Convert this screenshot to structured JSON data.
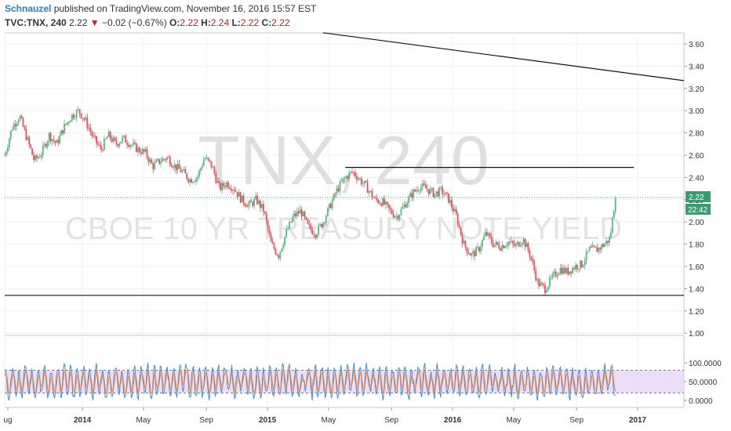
{
  "header": {
    "author": "Schnauzel",
    "published_text": " published on TradingView.com, November 16, 2016 15:57 EST",
    "symbol": "TVC:TNX, 240",
    "last": "2.22",
    "down_arrow": "▼",
    "change": "−0.02 (−0.67%)",
    "o_label": "O:",
    "o_value": "2.22",
    "h_label": "H:",
    "h_value": "2.24",
    "l_label": "L:",
    "l_value": "2.22",
    "c_label": "C:",
    "c_value": "2.22"
  },
  "watermark": {
    "symbol": "TNX, 240",
    "description": "CBOE 10 YR TREASURY NOTE YIELD"
  },
  "colors": {
    "up": "#53b987",
    "down": "#eb4d5c",
    "price_line": "#26a69a",
    "stoch_k": "#3f8fd2",
    "stoch_d": "#f5822a",
    "stoch_band": "#e6cff7",
    "drawing": "#111111"
  },
  "price_badge": {
    "value": "2.22",
    "time": "22:42"
  },
  "chart_data": [
    {
      "type": "candlestick",
      "title": "TVC:TNX, 240",
      "y_ticks": [
        "3.60",
        "3.40",
        "3.20",
        "3.00",
        "2.80",
        "2.60",
        "2.40",
        "2.20",
        "2.00",
        "1.80",
        "1.60",
        "1.40",
        "1.20",
        "1.00"
      ],
      "ylim": [
        1.0,
        3.68
      ],
      "x_ticks": [
        "ug",
        "2014",
        "May",
        "Sep",
        "2015",
        "May",
        "Sep",
        "2016",
        "May",
        "Sep",
        "2017"
      ],
      "bold_x_ticks": [
        "2014",
        "2015",
        "2016",
        "2017"
      ],
      "x_tick_months": [
        2013.58,
        2014.0,
        2014.33,
        2014.67,
        2015.0,
        2015.33,
        2015.67,
        2016.0,
        2016.33,
        2016.67,
        2017.0
      ],
      "xlim": [
        2013.58,
        2017.25
      ],
      "last_price": 2.22,
      "price_path": [
        [
          2013.58,
          2.6
        ],
        [
          2013.62,
          2.85
        ],
        [
          2013.66,
          2.95
        ],
        [
          2013.7,
          2.75
        ],
        [
          2013.74,
          2.55
        ],
        [
          2013.78,
          2.62
        ],
        [
          2013.82,
          2.78
        ],
        [
          2013.86,
          2.7
        ],
        [
          2013.9,
          2.85
        ],
        [
          2013.94,
          2.95
        ],
        [
          2013.98,
          3.0
        ],
        [
          2014.02,
          2.9
        ],
        [
          2014.06,
          2.75
        ],
        [
          2014.1,
          2.65
        ],
        [
          2014.14,
          2.78
        ],
        [
          2014.18,
          2.7
        ],
        [
          2014.22,
          2.75
        ],
        [
          2014.26,
          2.7
        ],
        [
          2014.3,
          2.65
        ],
        [
          2014.34,
          2.62
        ],
        [
          2014.38,
          2.5
        ],
        [
          2014.42,
          2.55
        ],
        [
          2014.46,
          2.58
        ],
        [
          2014.5,
          2.5
        ],
        [
          2014.54,
          2.45
        ],
        [
          2014.58,
          2.38
        ],
        [
          2014.62,
          2.4
        ],
        [
          2014.66,
          2.58
        ],
        [
          2014.7,
          2.5
        ],
        [
          2014.74,
          2.3
        ],
        [
          2014.78,
          2.35
        ],
        [
          2014.82,
          2.3
        ],
        [
          2014.86,
          2.2
        ],
        [
          2014.9,
          2.15
        ],
        [
          2014.94,
          2.2
        ],
        [
          2014.98,
          2.1
        ],
        [
          2015.02,
          1.8
        ],
        [
          2015.06,
          1.7
        ],
        [
          2015.1,
          1.9
        ],
        [
          2015.14,
          2.05
        ],
        [
          2015.18,
          2.1
        ],
        [
          2015.22,
          1.95
        ],
        [
          2015.26,
          1.9
        ],
        [
          2015.3,
          2.0
        ],
        [
          2015.34,
          2.15
        ],
        [
          2015.38,
          2.3
        ],
        [
          2015.42,
          2.4
        ],
        [
          2015.46,
          2.45
        ],
        [
          2015.5,
          2.38
        ],
        [
          2015.54,
          2.3
        ],
        [
          2015.58,
          2.2
        ],
        [
          2015.62,
          2.18
        ],
        [
          2015.66,
          2.1
        ],
        [
          2015.7,
          2.05
        ],
        [
          2015.74,
          2.15
        ],
        [
          2015.78,
          2.25
        ],
        [
          2015.82,
          2.32
        ],
        [
          2015.86,
          2.3
        ],
        [
          2015.9,
          2.25
        ],
        [
          2015.94,
          2.28
        ],
        [
          2015.98,
          2.2
        ],
        [
          2016.02,
          2.05
        ],
        [
          2016.06,
          1.8
        ],
        [
          2016.1,
          1.7
        ],
        [
          2016.14,
          1.75
        ],
        [
          2016.18,
          1.9
        ],
        [
          2016.22,
          1.8
        ],
        [
          2016.26,
          1.78
        ],
        [
          2016.3,
          1.82
        ],
        [
          2016.34,
          1.78
        ],
        [
          2016.38,
          1.85
        ],
        [
          2016.42,
          1.7
        ],
        [
          2016.46,
          1.45
        ],
        [
          2016.5,
          1.4
        ],
        [
          2016.54,
          1.5
        ],
        [
          2016.58,
          1.58
        ],
        [
          2016.62,
          1.55
        ],
        [
          2016.66,
          1.6
        ],
        [
          2016.7,
          1.62
        ],
        [
          2016.74,
          1.75
        ],
        [
          2016.78,
          1.75
        ],
        [
          2016.82,
          1.8
        ],
        [
          2016.85,
          1.85
        ],
        [
          2016.87,
          2.1
        ],
        [
          2016.88,
          2.25
        ]
      ],
      "drawn_lines": [
        {
          "name": "downtrend-line",
          "x1": 2015.3,
          "y1": 3.7,
          "x2": 2017.25,
          "y2": 3.27
        },
        {
          "name": "resistance-line",
          "x1": 2015.42,
          "y1": 2.49,
          "x2": 2016.98,
          "y2": 2.49
        },
        {
          "name": "support-line",
          "x1": 2013.58,
          "y1": 1.34,
          "x2": 2017.25,
          "y2": 1.34
        }
      ]
    },
    {
      "type": "line",
      "title": "Stochastic oscillator",
      "y_ticks": [
        "100.0000",
        "50.0000",
        "0.0000"
      ],
      "ylim": [
        -10,
        110
      ],
      "band": [
        20,
        80
      ],
      "series": [
        {
          "name": "",
          "color_key": "stoch_k"
        },
        {
          "name": "",
          "color_key": "stoch_d"
        }
      ],
      "oscillations_x_range": [
        2013.58,
        2016.88
      ],
      "oscillation_count": 95
    }
  ]
}
